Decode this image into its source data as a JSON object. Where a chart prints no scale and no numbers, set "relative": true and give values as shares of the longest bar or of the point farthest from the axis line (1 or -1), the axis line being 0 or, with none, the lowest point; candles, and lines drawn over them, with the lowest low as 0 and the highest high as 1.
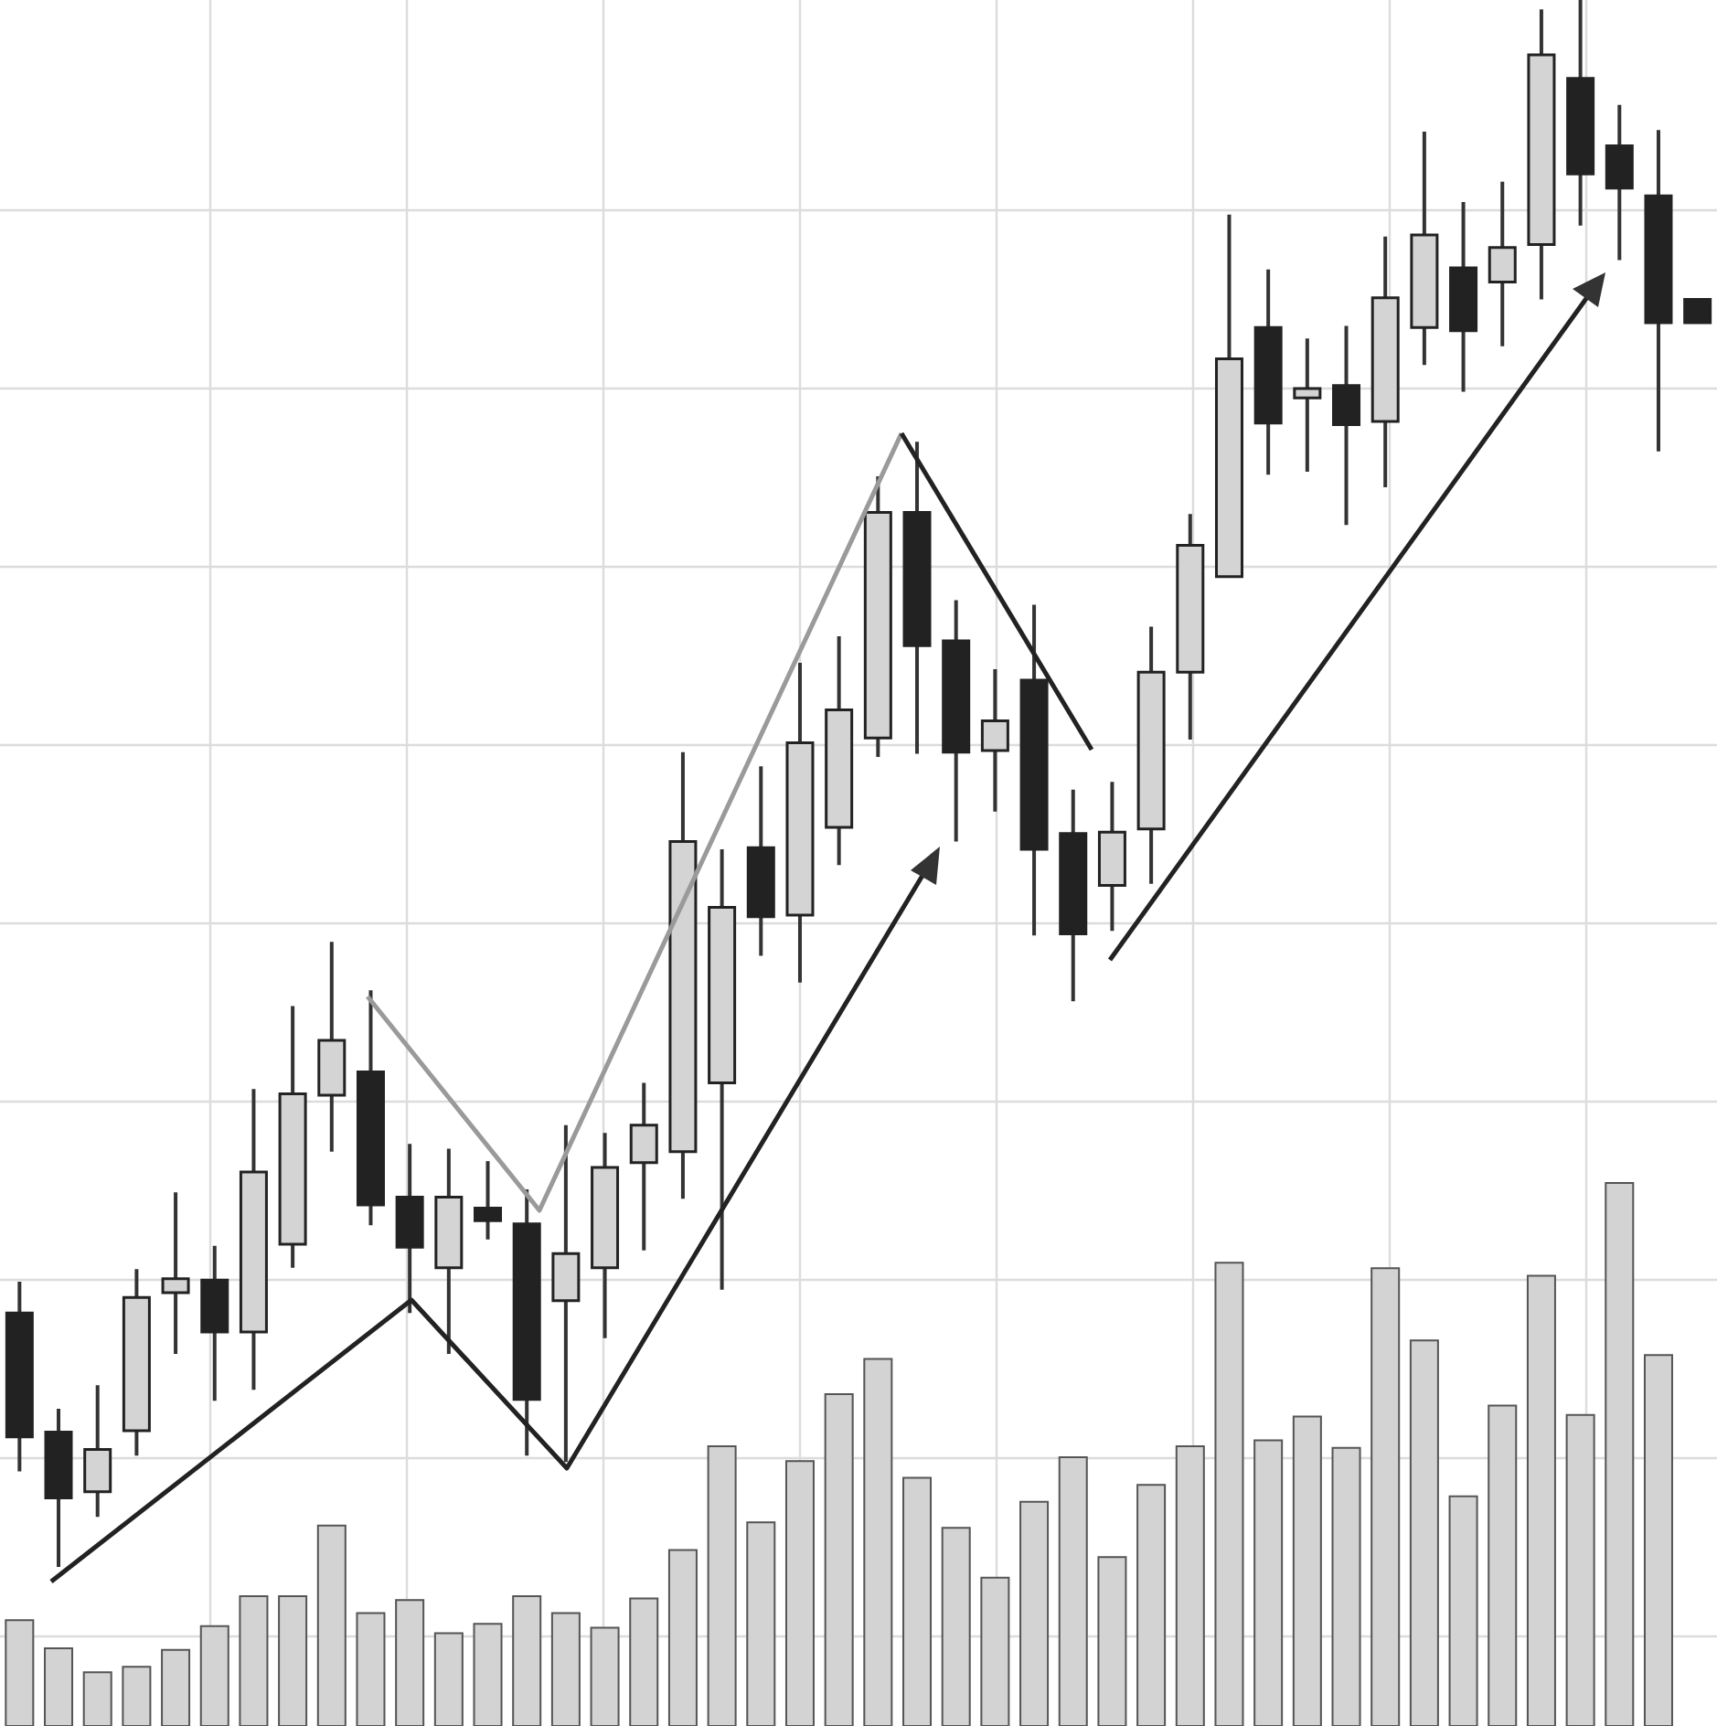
{
  "chart_data": [
    {
      "type": "candlestick",
      "relative": true,
      "tick_labels": false,
      "categories": [
        null,
        null,
        null,
        null,
        null,
        null,
        null,
        null,
        null,
        null,
        null,
        null,
        null,
        null,
        null,
        null,
        null,
        null,
        null,
        null,
        null,
        null,
        null,
        null,
        null,
        null,
        null,
        null,
        null,
        null,
        null,
        null,
        null,
        null,
        null,
        null,
        null,
        null,
        null,
        null,
        null,
        null,
        null,
        null
      ],
      "ohlc": [
        [
          0.162,
          0.182,
          0.061,
          0.083
        ],
        [
          0.086,
          0.101,
          0,
          0.044
        ],
        [
          0.048,
          0.116,
          0.032,
          0.075
        ],
        [
          0.087,
          0.19,
          0.071,
          0.172
        ],
        [
          0.175,
          0.239,
          0.136,
          0.184
        ],
        [
          0.183,
          0.205,
          0.106,
          0.15
        ],
        [
          0.15,
          0.305,
          0.113,
          0.252
        ],
        [
          0.206,
          0.358,
          0.191,
          0.302
        ],
        [
          0.301,
          0.399,
          0.265,
          0.336
        ],
        [
          0.316,
          0.368,
          0.218,
          0.231
        ],
        [
          0.236,
          0.27,
          0.162,
          0.204
        ],
        [
          0.191,
          0.267,
          0.136,
          0.236
        ],
        [
          0.229,
          0.259,
          0.209,
          0.221
        ],
        [
          0.219,
          0.241,
          0.071,
          0.107
        ],
        [
          0.17,
          0.282,
          0.067,
          0.2
        ],
        [
          0.191,
          0.277,
          0.146,
          0.255
        ],
        [
          0.258,
          0.309,
          0.202,
          0.282
        ],
        [
          0.265,
          0.52,
          0.235,
          0.463
        ],
        [
          0.309,
          0.458,
          0.177,
          0.421
        ],
        [
          0.459,
          0.511,
          0.39,
          0.415
        ],
        [
          0.416,
          0.577,
          0.373,
          0.526
        ],
        [
          0.472,
          0.594,
          0.448,
          0.547
        ],
        [
          0.529,
          0.696,
          0.517,
          0.673
        ],
        [
          0.673,
          0.718,
          0.519,
          0.588
        ],
        [
          0.591,
          0.617,
          0.463,
          0.52
        ],
        [
          0.521,
          0.573,
          0.482,
          0.54
        ],
        [
          0.566,
          0.614,
          0.403,
          0.458
        ],
        [
          0.468,
          0.496,
          0.361,
          0.404
        ],
        [
          0.435,
          0.501,
          0.406,
          0.469
        ],
        [
          0.471,
          0.6,
          0.436,
          0.571
        ],
        [
          0.571,
          0.672,
          0.528,
          0.652
        ],
        [
          0.632,
          0.863,
          0.632,
          0.771
        ],
        [
          0.791,
          0.828,
          0.697,
          0.73
        ],
        [
          0.746,
          0.784,
          0.699,
          0.752
        ],
        [
          0.754,
          0.792,
          0.665,
          0.729
        ],
        [
          0.731,
          0.849,
          0.689,
          0.81
        ],
        [
          0.791,
          0.916,
          0.767,
          0.85
        ],
        [
          0.829,
          0.871,
          0.75,
          0.789
        ],
        [
          0.82,
          0.884,
          0.779,
          0.842
        ],
        [
          0.844,
          0.994,
          0.809,
          0.965
        ],
        [
          0.95,
          1,
          0.856,
          0.889
        ],
        [
          0.907,
          0.933,
          0.834,
          0.88
        ],
        [
          0.875,
          0.917,
          0.712,
          0.794
        ],
        [
          0.809,
          0.809,
          0.794,
          0.794
        ]
      ],
      "colors": [
        "#222222",
        "#222222",
        "#d4d4d4",
        "#d4d4d4",
        "#d4d4d4",
        "#222222",
        "#d4d4d4",
        "#d4d4d4",
        "#d4d4d4",
        "#222222",
        "#222222",
        "#d4d4d4",
        "#222222",
        "#222222",
        "#d4d4d4",
        "#d4d4d4",
        "#d4d4d4",
        "#d4d4d4",
        "#d4d4d4",
        "#222222",
        "#d4d4d4",
        "#d4d4d4",
        "#d4d4d4",
        "#222222",
        "#222222",
        "#d4d4d4",
        "#222222",
        "#222222",
        "#d4d4d4",
        "#d4d4d4",
        "#d4d4d4",
        "#d4d4d4",
        "#222222",
        "#d4d4d4",
        "#222222",
        "#d4d4d4",
        "#d4d4d4",
        "#222222",
        "#d4d4d4",
        "#d4d4d4",
        "#222222",
        "#222222",
        "#222222",
        "#222222"
      ]
    },
    {
      "type": "bar",
      "relative": true,
      "grid": true,
      "tick_labels": false,
      "color": "#d3d3d3",
      "categories": [
        null,
        null,
        null,
        null,
        null,
        null,
        null,
        null,
        null,
        null,
        null,
        null,
        null,
        null,
        null,
        null,
        null,
        null,
        null,
        null,
        null,
        null,
        null,
        null,
        null,
        null,
        null,
        null,
        null,
        null,
        null,
        null,
        null,
        null,
        null,
        null,
        null,
        null,
        null,
        null,
        null,
        null,
        null,
        null
      ],
      "values": [
        0.195,
        0.143,
        0.099,
        0.109,
        0.14,
        0.184,
        0.239,
        0.239,
        0.369,
        0.208,
        0.232,
        0.171,
        0.188,
        0.239,
        0.208,
        0.181,
        0.235,
        0.324,
        0.515,
        0.375,
        0.488,
        0.611,
        0.676,
        0.457,
        0.365,
        0.273,
        0.413,
        0.495,
        0.311,
        0.444,
        0.515,
        0.853,
        0.526,
        0.57,
        0.512,
        0.843,
        0.71,
        0.423,
        0.59,
        0.829,
        0.573,
        1,
        0.683,
        null
      ]
    }
  ]
}
